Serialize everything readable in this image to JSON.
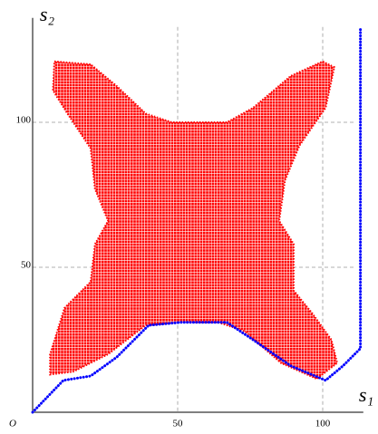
{
  "chart_data": {
    "type": "scatter",
    "origin_label": "O",
    "xlabel": "s₁",
    "ylabel": "s₂",
    "xlim": [
      0,
      114
    ],
    "ylim": [
      0,
      136
    ],
    "xticks": [
      50,
      100
    ],
    "yticks": [
      50,
      100
    ],
    "grid": true,
    "series": [
      {
        "style": "area",
        "color": "#ff0000",
        "x": [
          7.5,
          20,
          29,
          39,
          48,
          67,
          76,
          89,
          100,
          104,
          101,
          92,
          87,
          85,
          90,
          90,
          96.5,
          103,
          105,
          98,
          85.6,
          73,
          64,
          51,
          39,
          26,
          14,
          6,
          6,
          11,
          20,
          21.5,
          26,
          21.5,
          20,
          12,
          7
        ],
        "values": [
          121,
          120,
          112.5,
          103,
          100,
          100,
          105,
          116,
          121,
          119,
          105,
          92,
          80,
          66,
          58,
          42,
          34,
          25,
          17,
          11.5,
          17,
          28,
          31,
          31,
          30,
          20,
          14,
          13,
          20,
          36,
          45,
          58,
          66,
          77,
          91,
          103,
          111
        ]
      },
      {
        "style": "line",
        "color": "#0000ff",
        "x": [
          0,
          10.6,
          20,
          29,
          40,
          51,
          67,
          76,
          89,
          101,
          107,
          113,
          113
        ],
        "values": [
          0,
          11,
          12.5,
          19,
          30,
          31,
          31,
          25,
          16,
          11,
          16,
          22,
          133
        ]
      }
    ]
  }
}
